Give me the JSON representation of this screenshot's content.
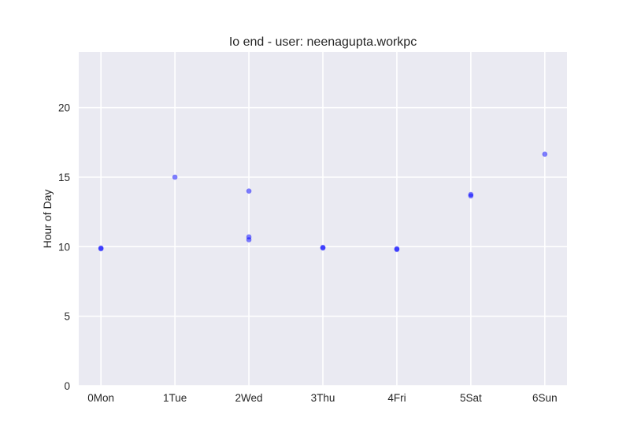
{
  "chart_data": {
    "type": "scatter",
    "title": "Io end - user: neenagupta.workpc",
    "xlabel": "",
    "ylabel": "Hour of Day",
    "categories": [
      "0Mon",
      "1Tue",
      "2Wed",
      "3Thu",
      "4Fri",
      "5Sat",
      "6Sun"
    ],
    "xlim": [
      -0.3,
      6.3
    ],
    "ylim": [
      0,
      24
    ],
    "yticks": [
      0,
      5,
      10,
      15,
      20
    ],
    "grid": true,
    "points": [
      {
        "x": 0,
        "y": 9.9
      },
      {
        "x": 0,
        "y": 9.85
      },
      {
        "x": 1,
        "y": 15.0
      },
      {
        "x": 2,
        "y": 14.0
      },
      {
        "x": 2,
        "y": 10.7
      },
      {
        "x": 2,
        "y": 10.5
      },
      {
        "x": 3,
        "y": 9.95
      },
      {
        "x": 3,
        "y": 9.9
      },
      {
        "x": 4,
        "y": 9.85
      },
      {
        "x": 4,
        "y": 9.8
      },
      {
        "x": 5,
        "y": 13.75
      },
      {
        "x": 5,
        "y": 13.65
      },
      {
        "x": 6,
        "y": 16.65
      }
    ],
    "colors": {
      "background": "#eaeaf2",
      "grid": "#ffffff",
      "point": "#0000ff",
      "text": "#262626"
    }
  }
}
